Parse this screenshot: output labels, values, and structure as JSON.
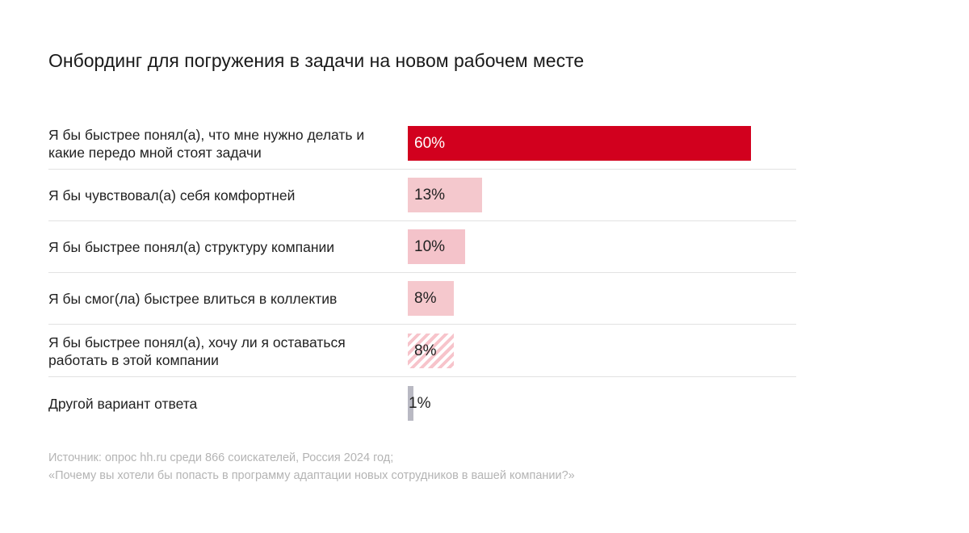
{
  "chart_data": {
    "type": "bar",
    "orientation": "horizontal",
    "title": "Онбординг для погружения в задачи на новом рабочем месте",
    "xlim": [
      0,
      60
    ],
    "grid": false,
    "legend": "none",
    "categories": [
      "Я бы быстрее понял(а), что мне нужно делать и какие передо мной стоят задачи",
      "Я бы чувствовал(а) себя комфортней",
      "Я бы быстрее понял(а) структуру компании",
      "Я бы смог(ла) быстрее влиться в коллектив",
      "Я бы быстрее понял(а), хочу ли я оставаться работать в этой компании",
      "Другой вариант ответа"
    ],
    "values": [
      60,
      13,
      10,
      8,
      8,
      1
    ],
    "value_labels": [
      "60%",
      "13%",
      "10%",
      "8%",
      "8%",
      "1%"
    ],
    "bar_styles": [
      "solid",
      "solid",
      "solid",
      "solid",
      "hatched",
      "solid"
    ],
    "bar_colors": [
      "#d2001e",
      "#f4c8cd",
      "#f4c3ca",
      "#f5c8cd",
      "#f7c4cb",
      "#b9b9c3"
    ]
  },
  "source": {
    "line1": "Источник: опрос hh.ru среди 866 соискателей, Россия 2024 год;",
    "line2": "«Почему вы хотели бы попасть в программу адаптации новых сотрудников в вашей компании?»"
  }
}
